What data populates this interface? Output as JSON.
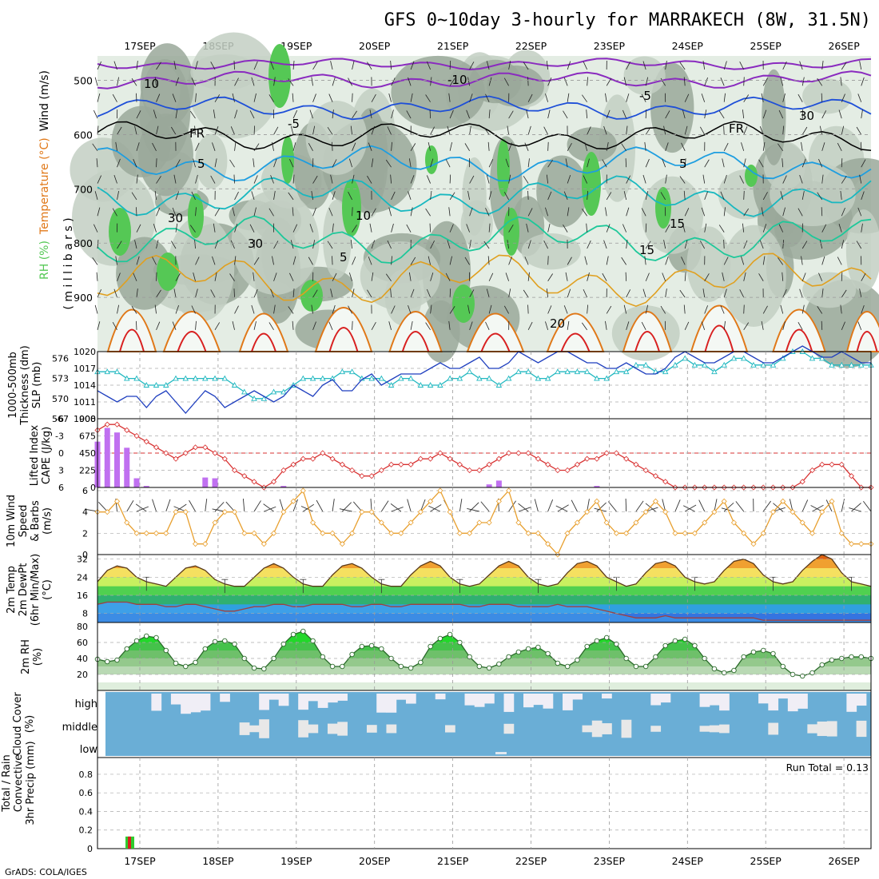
{
  "title": "GFS 0~10day 3-hourly for MARRAKECH (8W, 31.5N)",
  "footer": "GrADS: COLA/IGES",
  "dates": [
    "17SEP",
    "18SEP",
    "19SEP",
    "20SEP",
    "21SEP",
    "22SEP",
    "23SEP",
    "24SEP",
    "25SEP",
    "26SEP"
  ],
  "colors": {
    "rh_dark": "#9aa89a",
    "rh_mid": "#c3cfc3",
    "rh_light": "#e4ede4",
    "rh_green": "#55c855",
    "rh_bright": "#22dd22",
    "t_purple": "#8a2bbf",
    "t_blue": "#1e4fd8",
    "t_sky": "#1e9ee0",
    "t_cyan": "#18b8c0",
    "t_teal": "#1ec89a",
    "t_orange": "#e0a020",
    "t_dorange": "#e07818",
    "t_red": "#d82020",
    "slp": "#1f3fbf",
    "thick": "#20b8c0",
    "lifted": "#d83030",
    "cape": "#c070f0",
    "wind": "#e8a030",
    "cloud": "#6aaed6",
    "cloud_bg": "#f0eef6",
    "precip_total": "#2ecc2e",
    "precip_conv": "#d82020"
  },
  "panels": {
    "upper": {
      "ylabels": [
        "Wind (m/s)",
        "Temperature (°C)",
        "RH (%)"
      ],
      "units": "( m i l l i b a r s )",
      "yticks": [
        "500",
        "600",
        "700",
        "800",
        "900"
      ],
      "contour_labels": [
        "10",
        "-10",
        "-5",
        "-5",
        "FR",
        "FR",
        "5",
        "5",
        "10",
        "15",
        "15",
        "5",
        "20",
        "30",
        "30",
        "30"
      ]
    },
    "slp": {
      "ylabels": [
        "1000-500mb",
        "Thickness (dm)",
        "SLP (mb)"
      ],
      "left_ticks": [
        "576",
        "573",
        "570",
        "567"
      ],
      "right_ticks": [
        "1020",
        "1017",
        "1014",
        "1011",
        "1008"
      ]
    },
    "cape": {
      "ylabels": [
        "Lifted Index",
        "CAPE (J/kg)"
      ],
      "left_ticks": [
        "-6",
        "-3",
        "0",
        "3",
        "6"
      ],
      "right_ticks": [
        "900",
        "675",
        "450",
        "225",
        "0"
      ]
    },
    "wind": {
      "ylabels": [
        "10m Wind",
        "Speed",
        "& Barbs",
        "(m/s)"
      ],
      "ticks": [
        "6",
        "4",
        "2",
        "0"
      ]
    },
    "temp": {
      "ylabels": [
        "2m Temp",
        "2m DewPt",
        "(6hr Min/Max)",
        "(°C)"
      ],
      "ticks": [
        "32",
        "24",
        "16",
        "8"
      ]
    },
    "rh": {
      "ylabels": [
        "2m RH",
        "(%)"
      ],
      "ticks": [
        "80",
        "60",
        "40",
        "20"
      ]
    },
    "cloud": {
      "ylabels": [
        "Cloud Cover",
        "(%)"
      ],
      "ticks": [
        "high",
        "middle",
        "low"
      ]
    },
    "precip": {
      "ylabels": [
        "Total / Rain",
        "Convective",
        "3hr Precip (mm)"
      ],
      "ticks": [
        "0.8",
        "0.6",
        "0.4",
        "0.2",
        "0"
      ],
      "run_total": "Run Total = 0.13"
    }
  },
  "chart_data": {
    "type": "meteogram",
    "location": "MARRAKECH (8W, 31.5N)",
    "time_step_hours": 3,
    "x": [
      "17SEP",
      "18SEP",
      "19SEP",
      "20SEP",
      "21SEP",
      "22SEP",
      "23SEP",
      "24SEP",
      "25SEP",
      "26SEP"
    ],
    "slp_mb": [
      1013,
      1012,
      1011,
      1012,
      1012,
      1010,
      1012,
      1013,
      1011,
      1009,
      1011,
      1013,
      1012,
      1010,
      1011,
      1012,
      1013,
      1012,
      1011,
      1012,
      1014,
      1013,
      1012,
      1014,
      1015,
      1013,
      1013,
      1015,
      1016,
      1014,
      1015,
      1016,
      1016,
      1016,
      1017,
      1018,
      1017,
      1017,
      1018,
      1019,
      1017,
      1017,
      1018,
      1020,
      1019,
      1018,
      1019,
      1020,
      1020,
      1019,
      1018,
      1018,
      1017,
      1017,
      1018,
      1017,
      1016,
      1016,
      1017,
      1019,
      1020,
      1019,
      1018,
      1018,
      1019,
      1020,
      1020,
      1019,
      1018,
      1018,
      1019,
      1020,
      1021,
      1020,
      1019,
      1019,
      1020,
      1019,
      1018,
      1018
    ],
    "thickness_dm": [
      574,
      574,
      574,
      573,
      573,
      572,
      572,
      572,
      573,
      573,
      573,
      573,
      573,
      573,
      572,
      571,
      570,
      570,
      571,
      571,
      572,
      573,
      573,
      573,
      573,
      574,
      574,
      573,
      573,
      573,
      572,
      573,
      573,
      572,
      572,
      572,
      573,
      573,
      574,
      573,
      573,
      572,
      573,
      574,
      574,
      573,
      573,
      574,
      574,
      574,
      574,
      573,
      573,
      574,
      574,
      575,
      575,
      574,
      574,
      575,
      576,
      575,
      575,
      574,
      575,
      576,
      576,
      575,
      575,
      575,
      576,
      577,
      577,
      576,
      576,
      575,
      575,
      575,
      575,
      575
    ],
    "lifted_index": [
      -4,
      -5,
      -5,
      -4,
      -3,
      -2,
      -1,
      0,
      1,
      0,
      -1,
      -1,
      0,
      1,
      3,
      4,
      5,
      6,
      5,
      3,
      2,
      1,
      1,
      0,
      1,
      2,
      3,
      4,
      4,
      3,
      2,
      2,
      2,
      1,
      1,
      0,
      1,
      2,
      3,
      3,
      2,
      1,
      0,
      0,
      0,
      1,
      2,
      3,
      3,
      2,
      1,
      1,
      0,
      0,
      1,
      2,
      3,
      4,
      5,
      6,
      6,
      6,
      6,
      6,
      6,
      6,
      6,
      6,
      6,
      6,
      6,
      6,
      5,
      3,
      2,
      2,
      2,
      4,
      6,
      6
    ],
    "cape_jkg": [
      600,
      780,
      720,
      520,
      120,
      20,
      0,
      0,
      0,
      0,
      0,
      130,
      120,
      0,
      0,
      0,
      0,
      0,
      0,
      20,
      0,
      0,
      0,
      0,
      0,
      0,
      0,
      0,
      0,
      0,
      0,
      0,
      0,
      0,
      0,
      0,
      0,
      0,
      0,
      0,
      40,
      90,
      0,
      0,
      0,
      0,
      0,
      0,
      0,
      0,
      0,
      20,
      0,
      0,
      0,
      0,
      0,
      0,
      0,
      0,
      0,
      0,
      0,
      0,
      0,
      0,
      0,
      0,
      0,
      0,
      0,
      0,
      0,
      0,
      0,
      0,
      0,
      0,
      0,
      0
    ],
    "wind_speed_ms": [
      4,
      4,
      5,
      3,
      2,
      2,
      2,
      2,
      4,
      4,
      1,
      1,
      3,
      4,
      4,
      2,
      2,
      1,
      2,
      4,
      5,
      6,
      3,
      2,
      2,
      1,
      2,
      4,
      4,
      3,
      2,
      2,
      3,
      4,
      5,
      6,
      4,
      2,
      2,
      3,
      3,
      5,
      6,
      3,
      2,
      2,
      1,
      0,
      2,
      3,
      4,
      5,
      3,
      2,
      2,
      3,
      4,
      5,
      4,
      2,
      2,
      2,
      3,
      4,
      5,
      3,
      2,
      1,
      2,
      4,
      5,
      4,
      3,
      2,
      4,
      5,
      2,
      1,
      1,
      1
    ],
    "temp_c": [
      22,
      27,
      29,
      28,
      24,
      22,
      21,
      20,
      24,
      28,
      29,
      27,
      23,
      21,
      20,
      20,
      24,
      28,
      30,
      28,
      24,
      21,
      20,
      20,
      25,
      29,
      30,
      28,
      24,
      21,
      20,
      20,
      25,
      29,
      31,
      29,
      24,
      21,
      20,
      21,
      25,
      29,
      31,
      29,
      24,
      21,
      20,
      21,
      26,
      30,
      31,
      29,
      24,
      22,
      20,
      21,
      26,
      30,
      31,
      29,
      24,
      22,
      21,
      22,
      27,
      31,
      32,
      30,
      25,
      22,
      21,
      22,
      27,
      31,
      34,
      32,
      26,
      22,
      21,
      20
    ],
    "dewpoint_c": [
      12,
      13,
      13,
      13,
      12,
      12,
      12,
      11,
      11,
      12,
      12,
      11,
      10,
      9,
      9,
      10,
      11,
      11,
      12,
      12,
      11,
      11,
      12,
      12,
      12,
      12,
      11,
      11,
      12,
      12,
      11,
      11,
      12,
      12,
      12,
      12,
      12,
      12,
      11,
      11,
      12,
      12,
      12,
      11,
      11,
      11,
      11,
      12,
      11,
      11,
      11,
      10,
      9,
      8,
      7,
      6,
      6,
      6,
      7,
      6,
      6,
      6,
      6,
      6,
      6,
      6,
      6,
      6,
      5,
      5,
      5,
      5,
      5,
      5,
      5,
      5,
      5,
      5,
      5,
      5
    ],
    "rh_2m_pct": [
      39,
      36,
      38,
      52,
      62,
      68,
      66,
      50,
      34,
      30,
      35,
      52,
      61,
      62,
      58,
      40,
      28,
      27,
      40,
      58,
      70,
      74,
      62,
      42,
      30,
      30,
      45,
      55,
      56,
      52,
      40,
      30,
      28,
      35,
      55,
      65,
      70,
      60,
      42,
      30,
      28,
      33,
      42,
      48,
      52,
      54,
      46,
      34,
      30,
      38,
      55,
      62,
      66,
      58,
      40,
      30,
      30,
      42,
      56,
      62,
      64,
      56,
      40,
      27,
      22,
      25,
      42,
      48,
      50,
      46,
      30,
      20,
      18,
      22,
      32,
      38,
      40,
      42,
      42,
      40
    ],
    "precip_mm": {
      "total": [
        0.13
      ],
      "convective": [
        0.13
      ],
      "time": "17SEP"
    },
    "run_total_mm": 0.13
  }
}
